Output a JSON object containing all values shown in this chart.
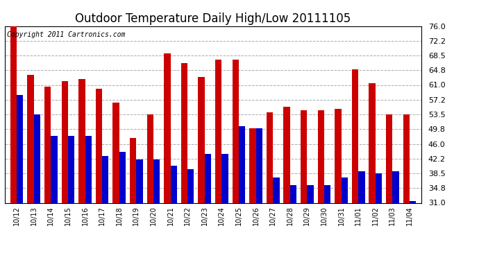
{
  "title": "Outdoor Temperature Daily High/Low 20111105",
  "copyright": "Copyright 2011 Cartronics.com",
  "dates": [
    "10/12",
    "10/13",
    "10/14",
    "10/15",
    "10/16",
    "10/17",
    "10/18",
    "10/19",
    "10/20",
    "10/21",
    "10/22",
    "10/23",
    "10/24",
    "10/25",
    "10/26",
    "10/27",
    "10/28",
    "10/29",
    "10/30",
    "10/31",
    "11/01",
    "11/02",
    "11/03",
    "11/04"
  ],
  "highs": [
    76.0,
    63.5,
    60.5,
    62.0,
    62.5,
    60.0,
    56.5,
    47.5,
    53.5,
    69.0,
    66.5,
    63.0,
    67.5,
    67.5,
    50.0,
    54.0,
    55.5,
    54.5,
    54.5,
    55.0,
    65.0,
    61.5,
    53.5,
    53.5
  ],
  "lows": [
    58.5,
    53.5,
    48.0,
    48.0,
    48.0,
    43.0,
    44.0,
    42.0,
    42.0,
    40.5,
    39.5,
    43.5,
    43.5,
    50.5,
    50.0,
    37.5,
    35.5,
    35.5,
    35.5,
    37.5,
    39.0,
    38.5,
    39.0,
    31.5
  ],
  "high_color": "#cc0000",
  "low_color": "#0000cc",
  "bg_color": "#ffffff",
  "plot_bg_color": "#ffffff",
  "grid_color": "#aaaaaa",
  "ylim_min": 31.0,
  "ylim_max": 76.0,
  "yticks": [
    31.0,
    34.8,
    38.5,
    42.2,
    46.0,
    49.8,
    53.5,
    57.2,
    61.0,
    64.8,
    68.5,
    72.2,
    76.0
  ],
  "title_fontsize": 12,
  "copyright_fontsize": 7,
  "bar_width": 0.38,
  "figwidth": 6.9,
  "figheight": 3.75,
  "dpi": 100
}
